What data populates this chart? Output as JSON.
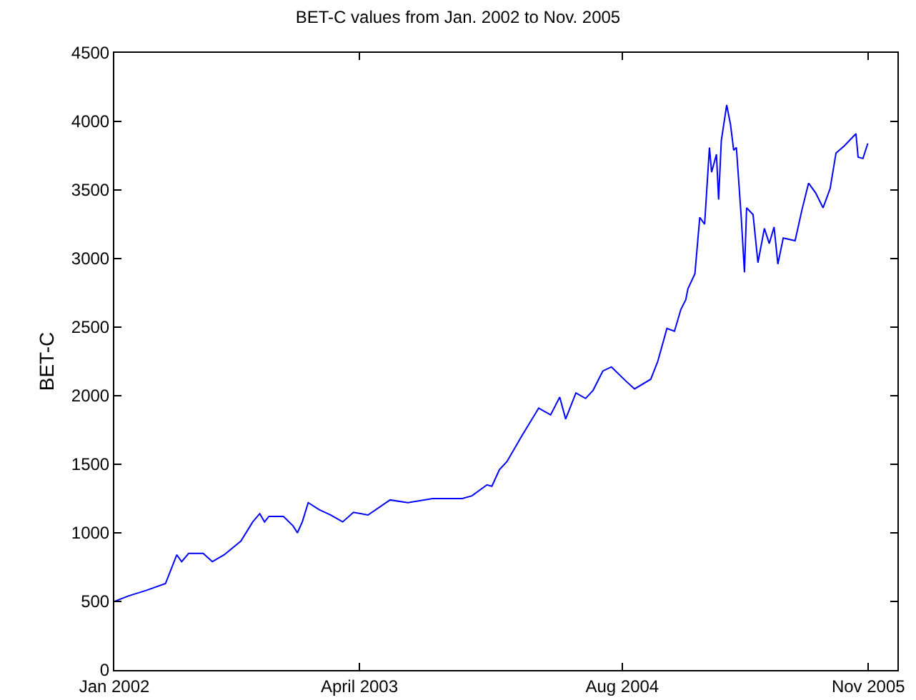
{
  "chart_data": {
    "type": "line",
    "title": "BET-C values from Jan. 2002 to Nov. 2005",
    "ylabel": "BET-C",
    "x": [
      "2002-01-01",
      "2002-01-27",
      "2002-03-01",
      "2002-04-06",
      "2002-04-27",
      "2002-05-06",
      "2002-05-19",
      "2002-06-15",
      "2002-07-02",
      "2002-07-24",
      "2002-08-24",
      "2002-09-15",
      "2002-09-28",
      "2002-10-07",
      "2002-10-15",
      "2002-11-11",
      "2002-11-29",
      "2002-12-07",
      "2002-12-16",
      "2002-12-27",
      "2003-01-16",
      "2003-02-07",
      "2003-03-01",
      "2003-03-21",
      "2003-04-17",
      "2003-05-28",
      "2003-06-30",
      "2003-08-15",
      "2003-10-09",
      "2003-10-27",
      "2003-11-24",
      "2003-12-03",
      "2003-12-17",
      "2003-12-31",
      "2004-01-28",
      "2004-02-28",
      "2004-03-21",
      "2004-04-07",
      "2004-04-18",
      "2004-05-07",
      "2004-05-25",
      "2004-06-08",
      "2004-06-26",
      "2004-07-12",
      "2004-08-07",
      "2004-08-24",
      "2004-09-23",
      "2004-10-06",
      "2004-10-23",
      "2004-11-06",
      "2004-11-18",
      "2004-11-27",
      "2004-12-01",
      "2004-12-14",
      "2004-12-23",
      "2005-01-01",
      "2005-01-10",
      "2005-01-14",
      "2005-01-23",
      "2005-01-27",
      "2005-02-01",
      "2005-02-11",
      "2005-02-18",
      "2005-02-24",
      "2005-03-01",
      "2005-03-10",
      "2005-03-16",
      "2005-03-20",
      "2005-04-01",
      "2005-04-10",
      "2005-04-22",
      "2005-05-01",
      "2005-05-10",
      "2005-05-17",
      "2005-05-27",
      "2005-06-18",
      "2005-07-01",
      "2005-07-13",
      "2005-07-26",
      "2005-08-09",
      "2005-08-22",
      "2005-09-02",
      "2005-09-17",
      "2005-10-09",
      "2005-10-13",
      "2005-10-22",
      "2005-10-31"
    ],
    "series": [
      {
        "color": "#0000ff",
        "values": [
          500,
          540,
          580,
          630,
          840,
          790,
          850,
          850,
          790,
          840,
          940,
          1080,
          1140,
          1080,
          1120,
          1120,
          1050,
          1000,
          1080,
          1220,
          1170,
          1130,
          1080,
          1150,
          1130,
          1240,
          1220,
          1250,
          1250,
          1270,
          1350,
          1340,
          1460,
          1520,
          1710,
          1910,
          1860,
          1990,
          1830,
          2020,
          1980,
          2040,
          2180,
          2210,
          2110,
          2050,
          2120,
          2250,
          2490,
          2470,
          2630,
          2700,
          2780,
          2890,
          3300,
          3250,
          3810,
          3630,
          3760,
          3430,
          3860,
          4120,
          3980,
          3790,
          3810,
          3300,
          2900,
          3370,
          3320,
          2970,
          3220,
          3110,
          3230,
          2960,
          3150,
          3130,
          3360,
          3550,
          3480,
          3370,
          3510,
          3770,
          3820,
          3910,
          3740,
          3730,
          3840
        ]
      }
    ],
    "xlim": [
      "2002-01-01",
      "2005-12-25"
    ],
    "xticks": [
      {
        "value": "2002-01-01",
        "label": "Jan 2002"
      },
      {
        "value": "2003-04-01",
        "label": "April 2003"
      },
      {
        "value": "2004-08-01",
        "label": "Aug 2004"
      },
      {
        "value": "2005-11-01",
        "label": "Nov 2005"
      }
    ],
    "ylim": [
      0,
      4500
    ],
    "yticks": [
      0,
      500,
      1000,
      1500,
      2000,
      2500,
      3000,
      3500,
      4000,
      4500
    ],
    "grid": false,
    "marker": "none",
    "line_style": "solid"
  }
}
